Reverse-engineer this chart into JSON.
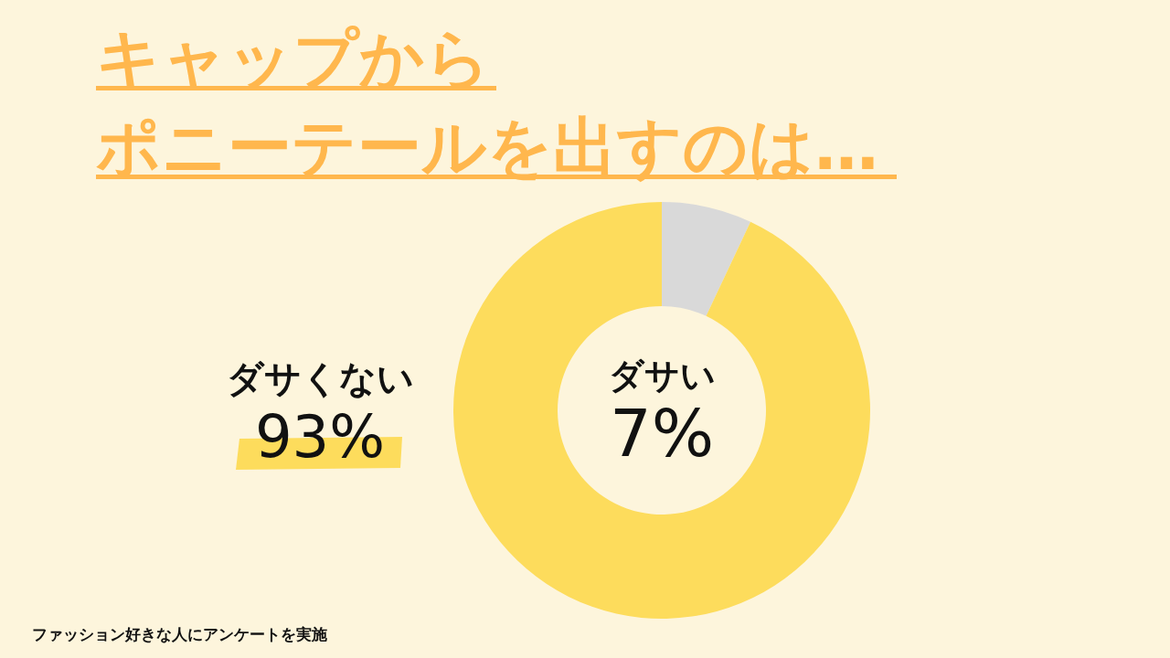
{
  "chart_data": {
    "type": "donut",
    "title": "キャップから",
    "subtitle": "ポニーテールを出すのは…",
    "categories": [
      "ダサい",
      "ダサくない"
    ],
    "values": [
      7,
      93
    ],
    "value_labels": [
      "7%",
      "93%"
    ],
    "colors": [
      "#d9d9d9",
      "#fddc5c"
    ],
    "annotations": [
      "ファッション好きな人にアンケートを実施"
    ]
  }
}
